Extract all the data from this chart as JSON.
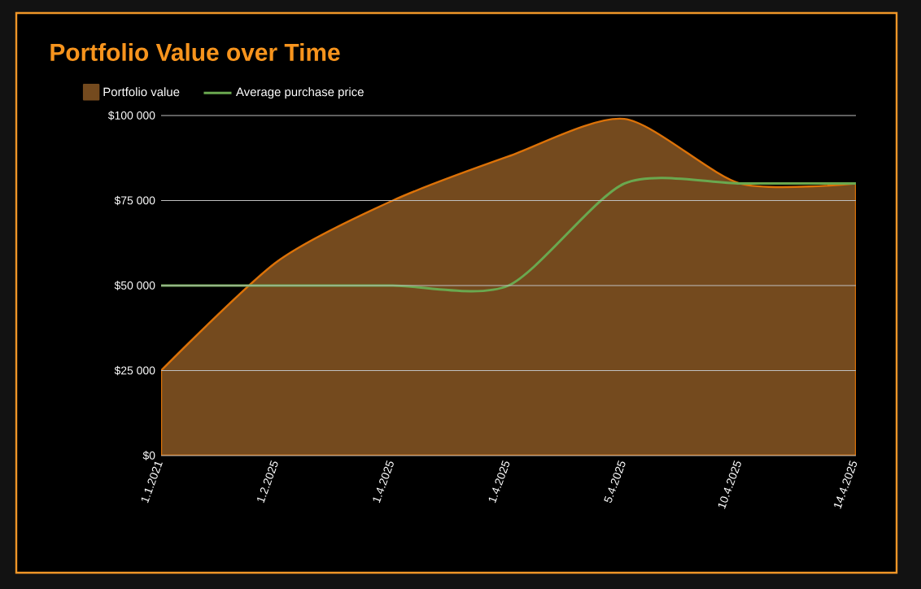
{
  "chart_data": {
    "type": "area",
    "title": "Portfolio Value over Time",
    "categories": [
      "1.1.2021",
      "1.2.2025",
      "1.4.2025",
      "1.4.2025",
      "5.4.2025",
      "10.4.2025",
      "14.4.2025"
    ],
    "series": [
      {
        "name": "Portfolio value",
        "color": "#744a1e",
        "values": [
          25000,
          57000,
          75000,
          88000,
          99000,
          80000,
          80000
        ]
      },
      {
        "name": "Average purchase price",
        "type": "line",
        "color": "#6aa84f",
        "values": [
          50000,
          50000,
          50000,
          50000,
          80000,
          80000,
          80000
        ]
      }
    ],
    "ylim": [
      0,
      100000
    ],
    "yticks": [
      {
        "value": 0,
        "label": "$0"
      },
      {
        "value": 25000,
        "label": "$25 000"
      },
      {
        "value": 50000,
        "label": "$50 000"
      },
      {
        "value": 75000,
        "label": "$75 000"
      },
      {
        "value": 100000,
        "label": "$100 000"
      }
    ],
    "grid": "y",
    "legend": "top left",
    "marker": "none",
    "line_style": "solid"
  }
}
